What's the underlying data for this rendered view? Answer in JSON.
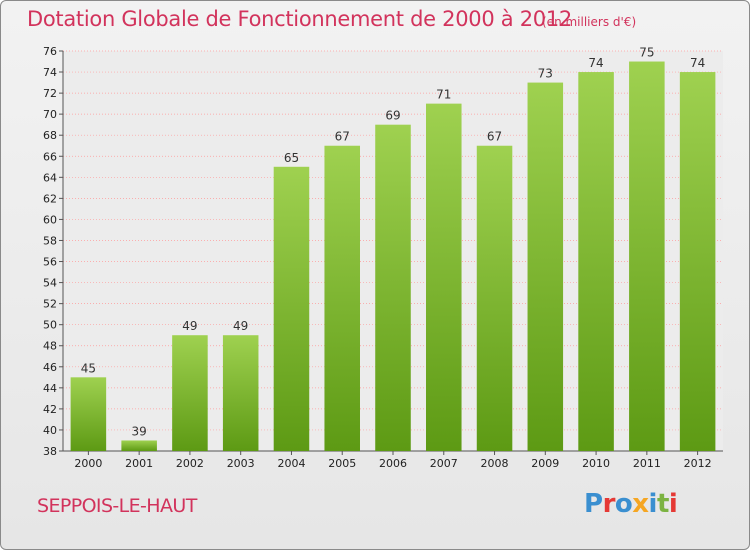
{
  "header": {
    "title": "Dotation Globale de Fonctionnement de 2000 à 2012",
    "unit": "(en milliers d'€)"
  },
  "footer": {
    "commune": "SEPPOIS-LE-HAUT",
    "logo_text": "Proxiti"
  },
  "colors": {
    "accent": "#d2335c",
    "bar_light": "#9fd150",
    "bar_dark": "#5d9a14",
    "grid": "#ff9a9a"
  },
  "chart_data": {
    "type": "bar",
    "title": "Dotation Globale de Fonctionnement de 2000 à 2012",
    "categories": [
      "2000",
      "2001",
      "2002",
      "2003",
      "2004",
      "2005",
      "2006",
      "2007",
      "2008",
      "2009",
      "2010",
      "2011",
      "2012"
    ],
    "values": [
      45,
      39,
      49,
      49,
      65,
      67,
      69,
      71,
      67,
      73,
      74,
      75,
      74
    ],
    "ylim": [
      38,
      76
    ],
    "yticks": [
      38,
      40,
      42,
      44,
      46,
      48,
      50,
      52,
      54,
      56,
      58,
      60,
      62,
      64,
      66,
      68,
      70,
      72,
      74,
      76
    ],
    "grid": true,
    "legend": "none"
  }
}
